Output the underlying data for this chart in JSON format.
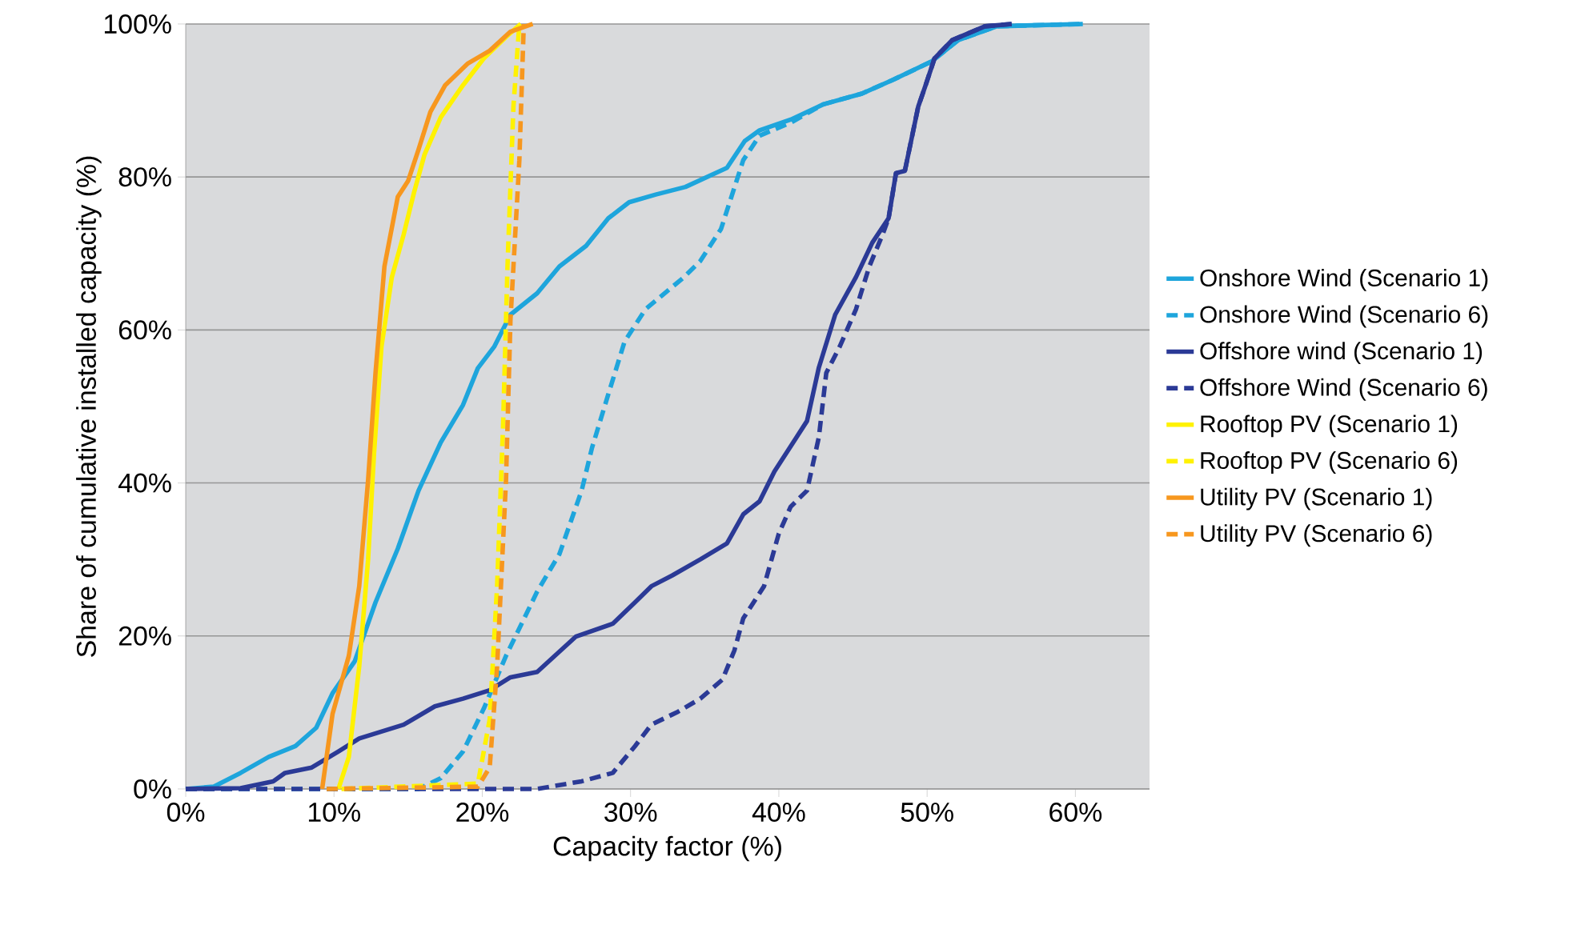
{
  "chart_data": {
    "type": "line",
    "xlabel": "Capacity factor (%)",
    "ylabel": "Share of cumulative installed capacity (%)",
    "xlim": [
      0,
      65
    ],
    "ylim": [
      0,
      100
    ],
    "xticks": [
      {
        "value": 0,
        "label": "0%"
      },
      {
        "value": 10,
        "label": "10%"
      },
      {
        "value": 20,
        "label": "20%"
      },
      {
        "value": 30,
        "label": "30%"
      },
      {
        "value": 40,
        "label": "40%"
      },
      {
        "value": 50,
        "label": "50%"
      },
      {
        "value": 60,
        "label": "60%"
      }
    ],
    "yticks": [
      {
        "value": 0,
        "label": "0%"
      },
      {
        "value": 20,
        "label": "20%"
      },
      {
        "value": 40,
        "label": "40%"
      },
      {
        "value": 60,
        "label": "60%"
      },
      {
        "value": 80,
        "label": "80%"
      },
      {
        "value": 100,
        "label": "100%"
      }
    ],
    "grid": "y",
    "legend": "right",
    "marker": "none",
    "series": [
      {
        "name": "Onshore Wind (Scenario 1)",
        "color": "#1ea5dc",
        "line_style": "solid",
        "x": [
          0,
          1.9,
          3.7,
          5.6,
          7.4,
          8.8,
          9.9,
          11.4,
          12.8,
          14.3,
          15.7,
          17.2,
          18.7,
          19.7,
          20.8,
          21.9,
          23.7,
          25.2,
          27,
          28.5,
          29.9,
          31.7,
          33.7,
          36.5,
          37.7,
          38.7,
          40.8,
          43,
          45.6,
          47.7,
          50.3,
          52.1,
          54.7,
          60.5
        ],
        "values": [
          0,
          0.3,
          2.1,
          4.2,
          5.6,
          8,
          12.5,
          16.7,
          24.4,
          31.4,
          39,
          45.3,
          50.2,
          55,
          57.8,
          62,
          64.8,
          68.3,
          71,
          74.6,
          76.7,
          77.7,
          78.7,
          81.2,
          84.7,
          86.1,
          87.5,
          89.5,
          90.9,
          92.7,
          95.1,
          97.9,
          99.7,
          100
        ]
      },
      {
        "name": "Onshore Wind (Scenario 6)",
        "color": "#1ea5dc",
        "line_style": "dashed",
        "x": [
          0,
          15.7,
          17.2,
          18.7,
          20.1,
          21.6,
          23.7,
          25.2,
          26.7,
          27.4,
          28.5,
          29.6,
          31,
          33.6,
          34.7,
          36.1,
          36.8,
          37.6,
          38.7,
          40.8,
          43,
          45.6,
          47.7,
          50.3,
          52.1,
          54.7,
          60.5
        ],
        "values": [
          0,
          0,
          1.4,
          4.9,
          10.5,
          17.4,
          25.8,
          30.7,
          39,
          44.6,
          51.6,
          58.5,
          62.7,
          66.9,
          69,
          73.2,
          77.4,
          82.2,
          85.4,
          87.1,
          89.5,
          90.9,
          92.7,
          95.1,
          97.9,
          99.7,
          100
        ]
      },
      {
        "name": "Offshore wind (Scenario 1)",
        "color": "#2b3a96",
        "line_style": "solid",
        "x": [
          0,
          3.7,
          5.9,
          6.7,
          8.5,
          10.3,
          11.7,
          14.7,
          16.8,
          18.7,
          20.5,
          21.9,
          23.7,
          26.3,
          28.8,
          30.3,
          31.4,
          32.8,
          34.7,
          36.5,
          37.6,
          38.7,
          39.7,
          41.2,
          41.9,
          42.7,
          43.8,
          45.2,
          46.3,
          47.4,
          47.9,
          48.5,
          49.4,
          49.9,
          50.5,
          51.7,
          53.9,
          55.7
        ],
        "values": [
          0,
          0.1,
          1,
          2.1,
          2.8,
          4.9,
          6.6,
          8.4,
          10.8,
          11.8,
          12.9,
          14.6,
          15.3,
          19.9,
          21.6,
          24.4,
          26.5,
          27.9,
          30,
          32.1,
          35.9,
          37.6,
          41.5,
          46,
          48.1,
          55.1,
          62,
          66.9,
          71.4,
          74.6,
          80.5,
          80.8,
          89.2,
          92,
          95.5,
          97.9,
          99.7,
          100
        ]
      },
      {
        "name": "Offshore Wind (Scenario 6)",
        "color": "#2b3a96",
        "line_style": "dashed",
        "x": [
          0,
          23.7,
          26.7,
          28.8,
          30.3,
          31.4,
          33.2,
          34.7,
          36.2,
          37,
          37.6,
          39,
          40,
          40.8,
          41.9,
          42.7,
          43.2,
          44.1,
          45.2,
          46.1,
          47,
          47.4,
          47.9,
          48.5,
          49.4,
          49.9,
          50.5,
          51.7,
          53.9,
          55.7
        ],
        "values": [
          0,
          0,
          1,
          2.1,
          5.6,
          8.4,
          10.1,
          11.8,
          14.3,
          18.1,
          22.3,
          26.5,
          33.4,
          36.9,
          39,
          46,
          54.4,
          57.8,
          62.7,
          68.3,
          72.5,
          74.6,
          80.5,
          80.8,
          89.2,
          92,
          95.5,
          97.9,
          99.7,
          100
        ]
      },
      {
        "name": "Rooftop PV (Scenario 1)",
        "color": "#fff200",
        "line_style": "solid",
        "x": [
          10.3,
          11,
          11.7,
          12.3,
          12.7,
          13.2,
          13.9,
          14.7,
          15.4,
          16.1,
          17.2,
          18.7,
          20.1,
          21.6,
          22.6
        ],
        "values": [
          0,
          4.2,
          16,
          30,
          43.9,
          57.8,
          66.9,
          72.5,
          78,
          82.9,
          87.8,
          92,
          95.5,
          98.3,
          100
        ]
      },
      {
        "name": "Rooftop PV (Scenario 6)",
        "color": "#fff200",
        "line_style": "dashed",
        "x": [
          10.5,
          19.7,
          20.5,
          21,
          21.4,
          21.7,
          22.1,
          22.5
        ],
        "values": [
          0,
          0.7,
          9.1,
          26.5,
          47.4,
          68.3,
          89.2,
          100
        ]
      },
      {
        "name": "Utility PV (Scenario 1)",
        "color": "#f7971e",
        "line_style": "solid",
        "x": [
          9.2,
          9.9,
          11,
          11.7,
          12.3,
          12.8,
          13.4,
          14.3,
          15,
          15.7,
          16.5,
          17.5,
          19,
          20.5,
          21.9,
          23.4
        ],
        "values": [
          0,
          9.8,
          17.4,
          26.5,
          40.4,
          54.4,
          68.3,
          77.4,
          79.5,
          83.6,
          88.5,
          92,
          94.8,
          96.5,
          99,
          100
        ]
      },
      {
        "name": "Utility PV (Scenario 6)",
        "color": "#f7971e",
        "line_style": "dashed",
        "x": [
          9.5,
          19.7,
          20.5,
          21,
          21.6,
          21.9,
          22.5,
          22.8
        ],
        "values": [
          0,
          0.3,
          2.8,
          16,
          40.4,
          61.3,
          82.2,
          100
        ]
      }
    ]
  }
}
